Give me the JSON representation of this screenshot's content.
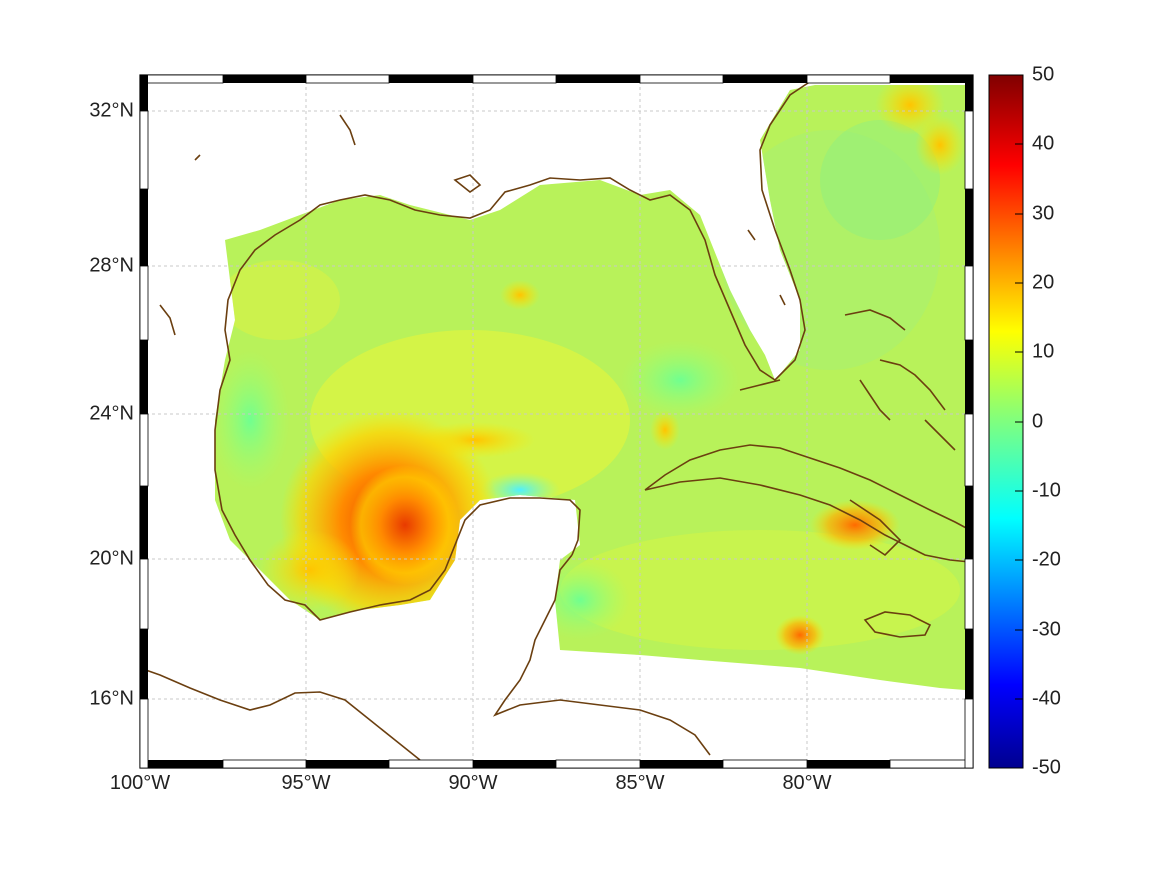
{
  "map": {
    "x_ticks": [
      "100°W",
      "95°W",
      "90°W",
      "85°W",
      "80°W"
    ],
    "y_ticks": [
      "32°N",
      "28°N",
      "24°N",
      "20°N",
      "16°N"
    ],
    "colorbar": {
      "ticks": [
        "50",
        "40",
        "30",
        "20",
        "10",
        "0",
        "-10",
        "-20",
        "-30",
        "-40",
        "-50"
      ],
      "range": [
        -50,
        50
      ],
      "colormap": "jet"
    },
    "colors": {
      "coastline": "#6b3f10",
      "field_background": "#b8f25a",
      "grid": "#c8c8c8",
      "frame": "#000000"
    },
    "features": {
      "hotspot_bay_of_campeche": "orange-red, ~30-35",
      "hotspot_south_cuba": "orange, ~25",
      "cool_patch_yucatan_north": "cyan, ~-5",
      "field_background": "yellow-green, ~5-10"
    }
  }
}
